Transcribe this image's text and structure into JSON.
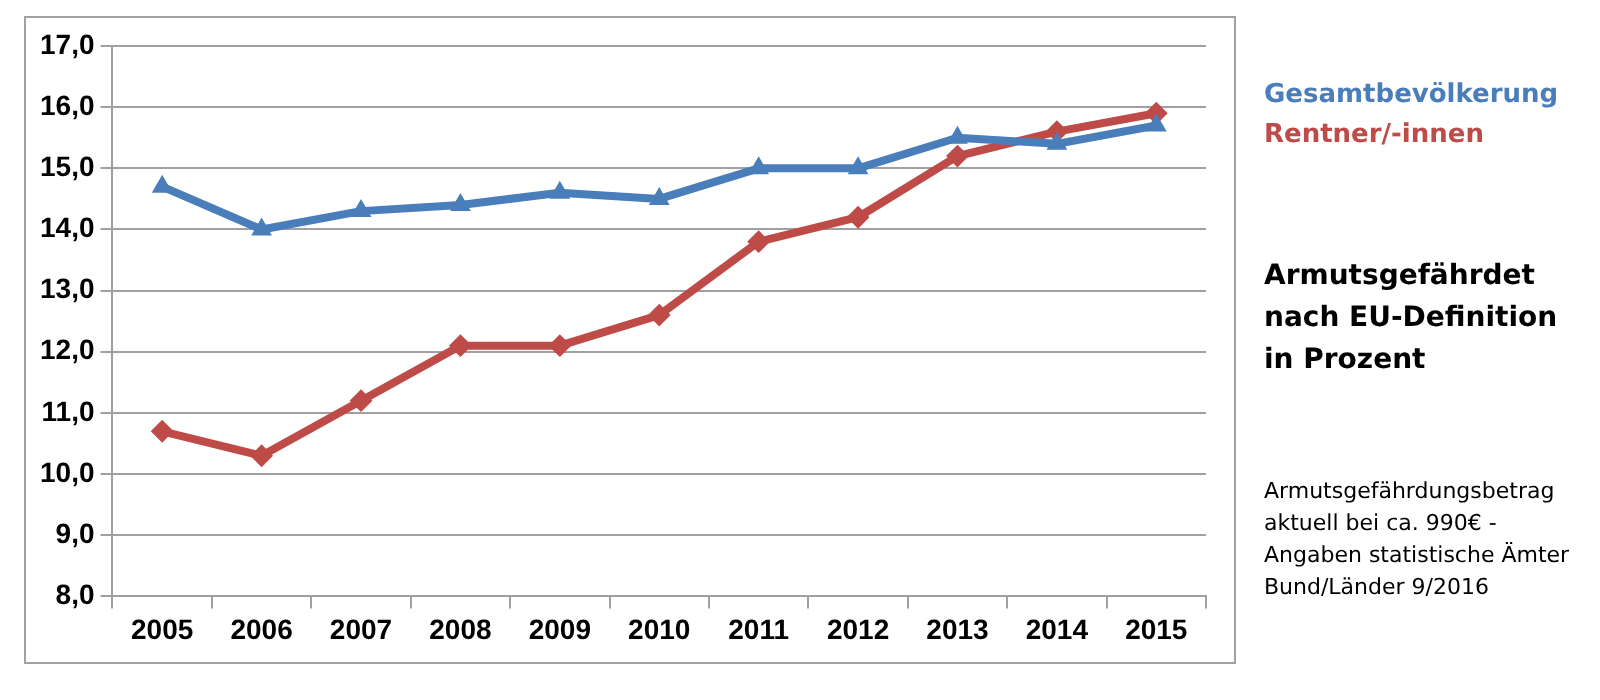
{
  "chart_data": {
    "type": "line",
    "title": "Armutsgefährdet nach EU-Definition in Prozent",
    "categories": [
      "2005",
      "2006",
      "2007",
      "2008",
      "2009",
      "2010",
      "2011",
      "2012",
      "2013",
      "2014",
      "2015"
    ],
    "series": [
      {
        "name": "Gesamtbevölkerung",
        "color": "#4a7ebb",
        "marker": "triangle",
        "values": [
          14.7,
          14.0,
          14.3,
          14.4,
          14.6,
          14.5,
          15.0,
          15.0,
          15.5,
          15.4,
          15.7
        ]
      },
      {
        "name": "Rentner/-innen",
        "color": "#be4b48",
        "marker": "diamond",
        "values": [
          10.7,
          10.3,
          11.2,
          12.1,
          12.1,
          12.6,
          13.8,
          14.2,
          15.2,
          15.6,
          15.9
        ]
      }
    ],
    "ylim": [
      8,
      17
    ],
    "yticks": [
      {
        "value": 8,
        "label": "8,0"
      },
      {
        "value": 9,
        "label": "9,0"
      },
      {
        "value": 10,
        "label": "10,0"
      },
      {
        "value": 11,
        "label": "11,0"
      },
      {
        "value": 12,
        "label": "12,0"
      },
      {
        "value": 13,
        "label": "13,0"
      },
      {
        "value": 14,
        "label": "14,0"
      },
      {
        "value": 15,
        "label": "15,0"
      },
      {
        "value": 16,
        "label": "16,0"
      },
      {
        "value": 17,
        "label": "17,0"
      }
    ],
    "grid": "y",
    "legend": "right",
    "line_style": "solid",
    "annotations": [
      "Armutsgefährdungsbetrag aktuell bei ca. 990€ - Angaben statistische Ämter Bund/Länder 9/2016"
    ]
  }
}
